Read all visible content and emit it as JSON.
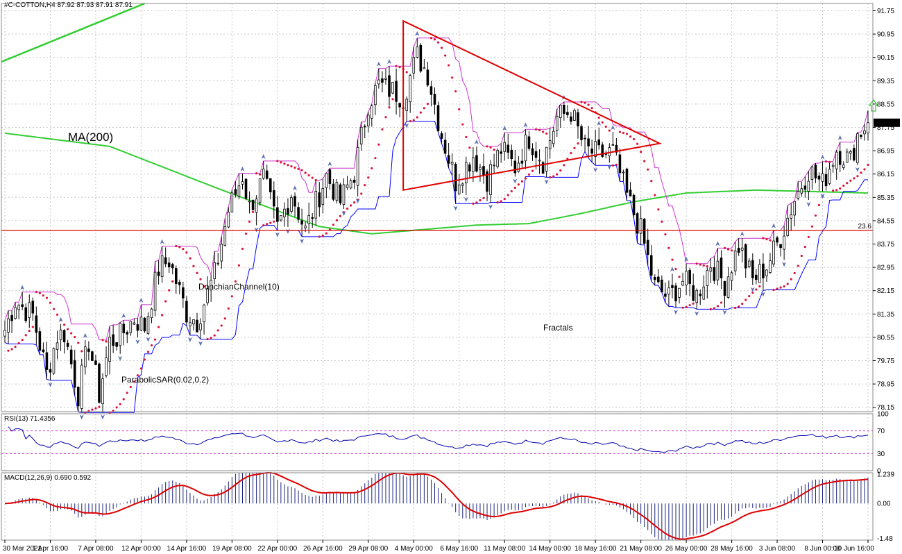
{
  "header": {
    "symbol_line": "#C-COTTON,H4  87.92 87.93 87.91 87.91"
  },
  "colors": {
    "bull_candle": "#000000",
    "bear_candle": "#000000",
    "ma200": "#32cd32",
    "donchian_upper": "#cc33cc",
    "donchian_lower": "#0000ff",
    "sar": "#dc143c",
    "fractal": "#5a6fb3",
    "triangle": "#e00000",
    "fib_line": "#e00000",
    "trend_line": "#32cd32",
    "up_arrow": "#32cd32",
    "rsi_line": "#0000aa",
    "rsi_level": "#cc33cc",
    "macd_hist": "#1a237e",
    "macd_signal": "#dd0000",
    "grid": "#c8c8c8"
  },
  "annotations": {
    "ma200_label": "MA(200)",
    "donchian_label": "DonchianChannel(10)",
    "fractals_label": "Fractals",
    "sar_label": "ParabolicSAR(0.02,0.2)",
    "fib_label": "23.6"
  },
  "chart_data": {
    "type": "candlestick",
    "symbol": "#C-COTTON",
    "timeframe": "H4",
    "price_axis_ticks": [
      "91.75",
      "90.95",
      "90.15",
      "89.35",
      "88.55",
      "87.75",
      "86.95",
      "86.15",
      "85.35",
      "84.55",
      "83.75",
      "82.95",
      "82.15",
      "81.35",
      "80.55",
      "79.75",
      "78.95",
      "78.15"
    ],
    "current_price": "87.91",
    "ylim": [
      78.0,
      92.0
    ],
    "fib_level": {
      "label": "23.6",
      "value": 84.22
    },
    "x_axis_labels": [
      "30 Mar 2021",
      "1 Apr 16:00",
      "7 Apr 08:00",
      "12 Apr 00:00",
      "14 Apr 16:00",
      "19 Apr 08:00",
      "22 Apr 00:00",
      "26 Apr 16:00",
      "29 Apr 08:00",
      "4 May 00:00",
      "6 May 16:00",
      "11 May 08:00",
      "14 May 00:00",
      "18 May 16:00",
      "21 May 08:00",
      "26 May 00:00",
      "28 May 16:00",
      "3 Jun 08:00",
      "8 Jun 00:00",
      "10 Jun 16:00"
    ],
    "bar_count": 248,
    "price_path_anchors": [
      [
        0,
        80.8
      ],
      [
        3,
        81.8
      ],
      [
        8,
        81.3
      ],
      [
        12,
        79.3
      ],
      [
        15,
        80.6
      ],
      [
        17,
        80.7
      ],
      [
        21,
        78.6
      ],
      [
        24,
        80.4
      ],
      [
        27,
        78.6
      ],
      [
        30,
        80.4
      ],
      [
        33,
        80.6
      ],
      [
        37,
        81.2
      ],
      [
        40,
        80.9
      ],
      [
        44,
        82.9
      ],
      [
        47,
        83.2
      ],
      [
        52,
        81.4
      ],
      [
        55,
        81.1
      ],
      [
        60,
        82.7
      ],
      [
        64,
        84.9
      ],
      [
        68,
        86.1
      ],
      [
        70,
        85.0
      ],
      [
        74,
        86.0
      ],
      [
        78,
        84.3
      ],
      [
        82,
        85.5
      ],
      [
        86,
        84.2
      ],
      [
        92,
        86.1
      ],
      [
        96,
        85.2
      ],
      [
        100,
        86.2
      ],
      [
        104,
        88.6
      ],
      [
        107,
        89.2
      ],
      [
        111,
        89.0
      ],
      [
        114,
        88.8
      ],
      [
        118,
        90.2
      ],
      [
        121,
        89.6
      ],
      [
        125,
        87.5
      ],
      [
        129,
        85.9
      ],
      [
        134,
        86.8
      ],
      [
        138,
        86.0
      ],
      [
        142,
        87.0
      ],
      [
        146,
        86.4
      ],
      [
        150,
        87.4
      ],
      [
        154,
        86.6
      ],
      [
        158,
        88.1
      ],
      [
        162,
        88.3
      ],
      [
        166,
        87.0
      ],
      [
        170,
        86.8
      ],
      [
        174,
        86.9
      ],
      [
        178,
        85.4
      ],
      [
        182,
        84.2
      ],
      [
        186,
        82.3
      ],
      [
        190,
        81.9
      ],
      [
        194,
        82.5
      ],
      [
        198,
        82.0
      ],
      [
        202,
        83.1
      ],
      [
        206,
        82.4
      ],
      [
        210,
        83.7
      ],
      [
        214,
        82.5
      ],
      [
        218,
        83.0
      ],
      [
        222,
        84.0
      ],
      [
        226,
        85.3
      ],
      [
        230,
        86.3
      ],
      [
        234,
        85.8
      ],
      [
        238,
        87.0
      ],
      [
        242,
        86.6
      ],
      [
        244,
        87.5
      ],
      [
        247,
        87.91
      ]
    ],
    "ma200_anchors": [
      [
        0,
        87.55
      ],
      [
        30,
        87.1
      ],
      [
        60,
        85.7
      ],
      [
        90,
        84.35
      ],
      [
        105,
        84.1
      ],
      [
        120,
        84.25
      ],
      [
        135,
        84.4
      ],
      [
        150,
        84.45
      ],
      [
        165,
        84.8
      ],
      [
        180,
        85.2
      ],
      [
        195,
        85.5
      ],
      [
        215,
        85.6
      ],
      [
        247,
        85.5
      ]
    ],
    "rsi": {
      "label": "RSI(13) 71.4356",
      "ticks": [
        "100",
        "70",
        "30",
        "0"
      ],
      "levels": [
        70,
        30
      ],
      "ylim": [
        0,
        100
      ]
    },
    "macd": {
      "label": "MACD(12,26,9) 0.690 0.592",
      "ticks": [
        "1.239",
        "0.00",
        "-1.48"
      ],
      "ylim": [
        -1.55,
        1.3
      ]
    }
  }
}
